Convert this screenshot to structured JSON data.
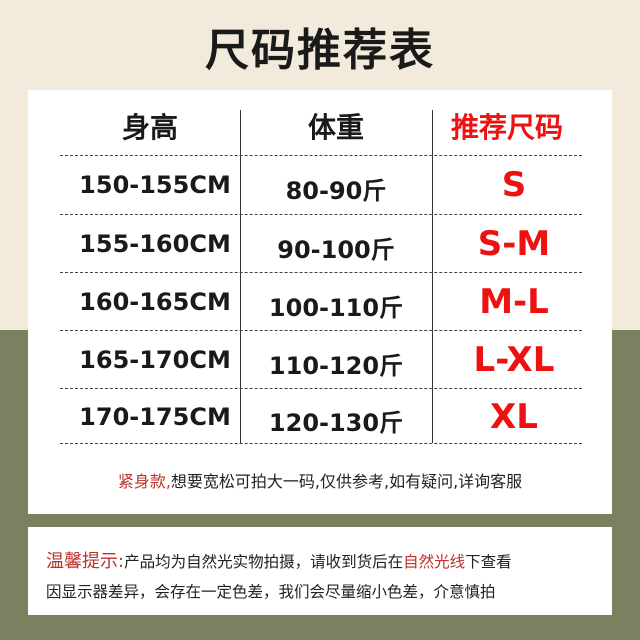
{
  "title": "尺码推荐表",
  "table": {
    "headers": [
      "身高",
      "体重",
      "推荐尺码"
    ],
    "rows": [
      {
        "height": "150-155CM",
        "weight": "80-90斤",
        "size": "S"
      },
      {
        "height": "155-160CM",
        "weight": "90-100斤",
        "size": "S-M"
      },
      {
        "height": "160-165CM",
        "weight": "100-110斤",
        "size": "M-L"
      },
      {
        "height": "165-170CM",
        "weight": "110-120斤",
        "size": "L-XL"
      },
      {
        "height": "170-175CM",
        "weight": "120-130斤",
        "size": "XL"
      }
    ]
  },
  "note": {
    "highlight": "紧身款,",
    "text": "想要宽松可拍大一码,仅供参考,如有疑问,详询客服"
  },
  "tips": {
    "label": "温馨提示:",
    "text1": "产品均为自然光实物拍摄，请收到货后在",
    "highlight": "自然光线",
    "text2": "下查看",
    "line2": "因显示器差异，会存在一定色差，我们会尽量缩小色差，介意慎拍"
  },
  "colors": {
    "accent": "#ee1111",
    "top_bg": "#f2eadb",
    "bottom_bg": "#7a8160"
  }
}
